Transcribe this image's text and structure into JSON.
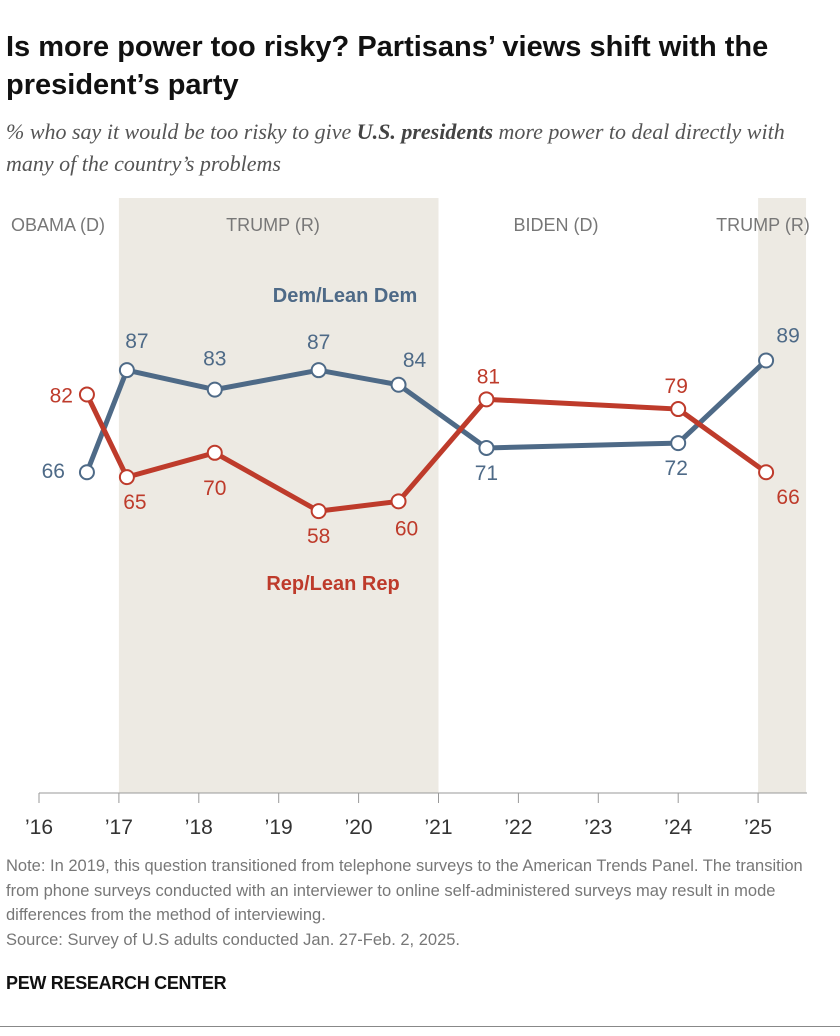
{
  "header": {
    "title": "Is more power too risky? Partisans’ views shift with the president’s party",
    "subtitle_pre": "% who say it would be too risky to give ",
    "subtitle_bold": "U.S. presidents",
    "subtitle_post": " more power to deal directly with many of the country’s problems"
  },
  "chart_data": {
    "type": "line",
    "xlim": [
      2016,
      2025.6
    ],
    "ylim": [
      0,
      100
    ],
    "x_ticks": [
      2016,
      2017,
      2018,
      2019,
      2020,
      2021,
      2022,
      2023,
      2024,
      2025
    ],
    "x_tick_labels": [
      "’16",
      "’17",
      "’18",
      "’19",
      "’20",
      "’21",
      "’22",
      "’23",
      "’24",
      "’25"
    ],
    "grid": false,
    "shaded_periods": [
      {
        "label": "OBAMA (D)",
        "start": 2016,
        "end": 2017,
        "shaded": false
      },
      {
        "label": "TRUMP (R)",
        "start": 2017,
        "end": 2021,
        "shaded": true
      },
      {
        "label": "BIDEN (D)",
        "start": 2021,
        "end": 2025,
        "shaded": false
      },
      {
        "label": "TRUMP (R)",
        "start": 2025,
        "end": 2025.6,
        "shaded": true
      }
    ],
    "x": [
      2016.6,
      2017.1,
      2018.2,
      2019.5,
      2020.5,
      2021.6,
      2024.0,
      2025.1
    ],
    "series": [
      {
        "name": "Dem/Lean Dem",
        "color": "#4E6A87",
        "values": [
          66,
          87,
          83,
          87,
          84,
          71,
          72,
          89
        ]
      },
      {
        "name": "Rep/Lean Rep",
        "color": "#BE3B2B",
        "values": [
          82,
          65,
          70,
          58,
          60,
          81,
          79,
          66
        ]
      }
    ],
    "shade_color": "#EDEAE3"
  },
  "footer": {
    "note": "Note: In 2019, this question transitioned from telephone surveys to the American Trends Panel. The transition from phone surveys conducted with an interviewer to online self-administered surveys may result in mode differences from the method of interviewing.",
    "source": "Source: Survey of U.S adults conducted Jan. 27-Feb. 2, 2025.",
    "brand": "PEW RESEARCH CENTER"
  }
}
